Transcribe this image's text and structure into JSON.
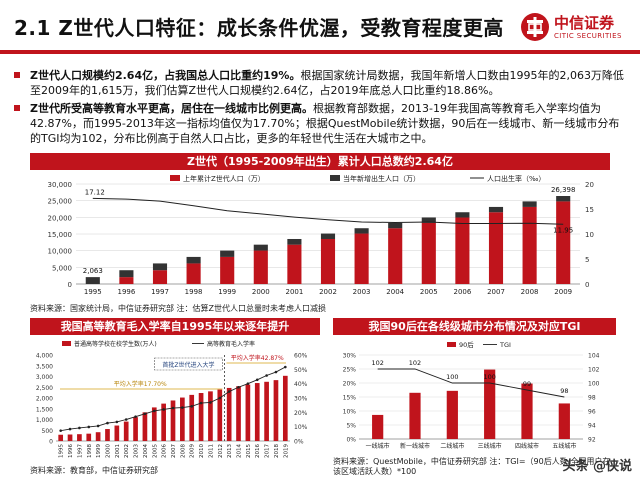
{
  "title": "2.1 Z世代人口特征：成长条件优渥，受教育程度更高",
  "logo": {
    "cn": "中信证券",
    "en": "CITIC SECURITIES"
  },
  "bullets": [
    {
      "lead": "Z世代人口规模约2.64亿，占我国总人口比重约19%。",
      "body": "根据国家统计局数据，我国年新增人口数由1995年的2,063万降低至2009年的1,615万，我们估算Z世代人口规模约2.64亿，占2019年底总人口比重约18.86%。"
    },
    {
      "lead": "Z世代所受高等教育水平更高，居住在一线城市比例更高。",
      "body": "根据教育部数据，2013-19年我国高等教育毛入学率均值为42.87%，而1995-2013年这一指标均值仅为17.70%；根据QuestMobile统计数据，90后在一线城市、新一线城市分布的TGI均为102，分布比例高于自然人口占比，更多的年轻世代生活在大城市之中。"
    }
  ],
  "chart1_banner": "Z世代（1995-2009年出生）累计人口总数约2.64亿",
  "chart2_banner": "我国高等教育毛入学率自1995年以来逐年提升",
  "chart3_banner": "我国90后在各线级城市分布情况及对应TGI",
  "source1": "资料来源：国家统计局，中信证券研究部 注：估算Z世代人口总量时未考虑人口减损",
  "source2": "资料来源：教育部，中信证券研究部",
  "source3": "资料来源：QuestMobile，中信证券研究部 注：TGI=（90后人数/全网用户在该区域活跃人数）*100",
  "watermark": "头条 @侠说",
  "colors": {
    "red": "#c0141c",
    "dark": "#333333",
    "grid": "#d0d0d0"
  },
  "chart_data": [
    {
      "type": "bar",
      "title": "",
      "categories": [
        "1995",
        "1996",
        "1997",
        "1998",
        "1999",
        "2000",
        "2001",
        "2002",
        "2003",
        "2004",
        "2005",
        "2006",
        "2007",
        "2008",
        "2009"
      ],
      "series": [
        {
          "name": "上年累计Z世代人口（万）",
          "values": [
            0,
            2063,
            4135,
            6173,
            8125,
            10030,
            11801,
            13503,
            15134,
            16733,
            18326,
            19943,
            21527,
            23120,
            24783
          ]
        },
        {
          "name": "当年新增出生人口（万）",
          "values": [
            2063,
            2072,
            2038,
            1952,
            1905,
            1771,
            1702,
            1631,
            1599,
            1593,
            1617,
            1584,
            1593,
            1663,
            1615
          ]
        },
        {
          "name": "人口出生率（‰）",
          "values": [
            17.12,
            16.98,
            16.57,
            15.64,
            14.64,
            14.03,
            13.38,
            12.86,
            12.41,
            12.29,
            12.4,
            12.09,
            12.1,
            12.14,
            11.95
          ]
        }
      ],
      "data_labels": [
        {
          "series": "当年新增出生人口（万）",
          "category": "1995",
          "text": "2,063"
        },
        {
          "series": "上年累计Z世代人口（万）",
          "category": "2009",
          "text": "26,398"
        },
        {
          "series": "人口出生率（‰）",
          "category": "1995",
          "text": "17.12"
        },
        {
          "series": "人口出生率（‰）",
          "category": "2009",
          "text": "11.95"
        }
      ],
      "ylim": [
        0,
        30000
      ],
      "yticks": [
        "0",
        "5,000",
        "10,000",
        "15,000",
        "20,000",
        "25,000",
        "30,000"
      ],
      "y2lim": [
        0,
        20
      ],
      "y2ticks": [
        "0",
        "5",
        "10",
        "15",
        "20"
      ],
      "legend": "top"
    },
    {
      "type": "bar",
      "title": "",
      "categories": [
        "1995",
        "1996",
        "1997",
        "1998",
        "1999",
        "2000",
        "2001",
        "2002",
        "2003",
        "2004",
        "2005",
        "2006",
        "2007",
        "2008",
        "2009",
        "2010",
        "2011",
        "2012",
        "2013",
        "2014",
        "2015",
        "2016",
        "2017",
        "2018",
        "2019"
      ],
      "series": [
        {
          "name": "普通高等学校在校学生数(万人)",
          "values": [
            291,
            302,
            317,
            341,
            409,
            556,
            719,
            903,
            1109,
            1333,
            1562,
            1739,
            1885,
            2021,
            2145,
            2232,
            2309,
            2391,
            2468,
            2548,
            2625,
            2696,
            2754,
            2831,
            3032
          ]
        },
        {
          "name": "高等教育毛入学率",
          "values": [
            7.2,
            8.3,
            9.1,
            9.8,
            10.5,
            12.5,
            13.3,
            15.0,
            17.0,
            19.0,
            21.0,
            22.0,
            23.0,
            23.3,
            24.2,
            26.5,
            26.9,
            30.0,
            34.5,
            37.5,
            40.0,
            42.7,
            45.7,
            48.1,
            51.6
          ]
        }
      ],
      "annotations": [
        "首批Z世代进入大学",
        "平均入学率17.70%",
        "平均入学率42.87%"
      ],
      "ylim": [
        0,
        4000
      ],
      "yticks": [
        "0",
        "500",
        "1,000",
        "1,500",
        "2,000",
        "2,500",
        "3,000",
        "3,500",
        "4,000"
      ],
      "y2lim": [
        0,
        60
      ],
      "y2ticks": [
        "0%",
        "10%",
        "20%",
        "30%",
        "40%",
        "50%",
        "60%"
      ],
      "legend": "top"
    },
    {
      "type": "bar",
      "title": "",
      "categories": [
        "一线城市",
        "新一线城市",
        "二线城市",
        "三线城市",
        "四线城市",
        "五线城市"
      ],
      "series": [
        {
          "name": "90后",
          "values": [
            8.6,
            16.5,
            17.2,
            24.8,
            19.8,
            12.7
          ]
        },
        {
          "name": "TGI",
          "values": [
            102,
            102,
            100,
            100,
            99,
            98
          ]
        }
      ],
      "ylim": [
        0,
        30
      ],
      "yticks": [
        "0%",
        "5%",
        "10%",
        "15%",
        "20%",
        "25%",
        "30%"
      ],
      "y2lim": [
        92,
        104
      ],
      "y2ticks": [
        "92",
        "94",
        "96",
        "98",
        "100",
        "102",
        "104"
      ],
      "legend": "top"
    }
  ]
}
